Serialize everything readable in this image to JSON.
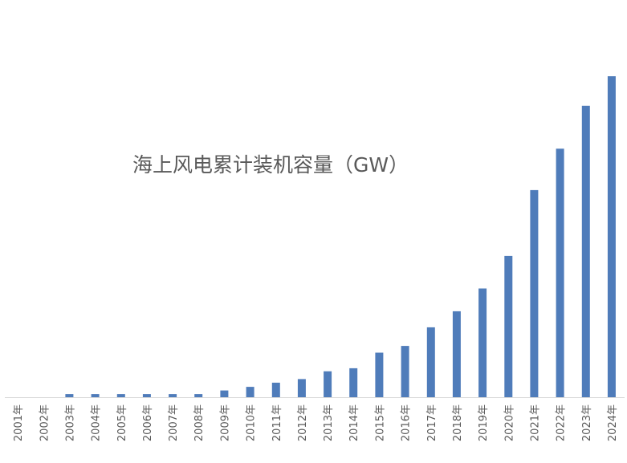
{
  "chart_data": {
    "type": "bar",
    "title": "海上风电累计装机容量（GW）",
    "xlabel": "",
    "ylabel": "",
    "categories": [
      "2001年",
      "2002年",
      "2003年",
      "2004年",
      "2005年",
      "2006年",
      "2007年",
      "2008年",
      "2009年",
      "2010年",
      "2011年",
      "2012年",
      "2013年",
      "2014年",
      "2015年",
      "2016年",
      "2017年",
      "2018年",
      "2019年",
      "2020年",
      "2021年",
      "2022年",
      "2023年",
      "2024年"
    ],
    "values": [
      0,
      0,
      0.6,
      0.6,
      0.6,
      0.6,
      0.6,
      0.6,
      1.3,
      2.0,
      2.8,
      3.5,
      5.0,
      5.6,
      8.6,
      9.9,
      13.5,
      16.6,
      21.0,
      27.3,
      40.0,
      48.0,
      56.3,
      62.0
    ],
    "ylim": [
      0,
      62
    ],
    "grid": false,
    "legend": "none",
    "color": "#4F7CBA"
  }
}
